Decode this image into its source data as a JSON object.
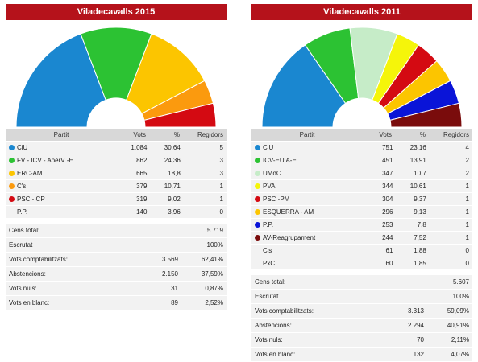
{
  "panels": [
    {
      "title": "Viladecavalls 2015",
      "headers": {
        "party": "Partit",
        "votes": "Vots",
        "pct": "%",
        "seats": "Regidors"
      },
      "parties": [
        {
          "name": "CiU",
          "votes": "1.084",
          "pct": "30,64",
          "seats": "5",
          "color": "#1a87d0"
        },
        {
          "name": "FV - ICV - AperV -E",
          "votes": "862",
          "pct": "24,36",
          "seats": "3",
          "color": "#2cc233"
        },
        {
          "name": "ERC-AM",
          "votes": "665",
          "pct": "18,8",
          "seats": "3",
          "color": "#fcc500"
        },
        {
          "name": "C's",
          "votes": "379",
          "pct": "10,71",
          "seats": "1",
          "color": "#fb9a0e"
        },
        {
          "name": "PSC - CP",
          "votes": "319",
          "pct": "9,02",
          "seats": "1",
          "color": "#d40a12"
        },
        {
          "name": "P.P.",
          "votes": "140",
          "pct": "3,96",
          "seats": "0",
          "color": ""
        }
      ],
      "summary": [
        {
          "label": "Cens total:",
          "value": "",
          "pct": "5.719"
        },
        {
          "label": "Escrutat",
          "value": "",
          "pct": "100%"
        },
        {
          "label": "Vots comptabilitzats:",
          "value": "3.569",
          "pct": "62,41%"
        },
        {
          "label": "Abstencions:",
          "value": "2.150",
          "pct": "37,59%"
        },
        {
          "label": "Vots nuls:",
          "value": "31",
          "pct": "0,87%"
        },
        {
          "label": "Vots en blanc:",
          "value": "89",
          "pct": "2,52%"
        }
      ]
    },
    {
      "title": "Viladecavalls 2011",
      "headers": {
        "party": "Partit",
        "votes": "Vots",
        "pct": "%",
        "seats": "Regidors"
      },
      "parties": [
        {
          "name": "CiU",
          "votes": "751",
          "pct": "23,16",
          "seats": "4",
          "color": "#1a87d0"
        },
        {
          "name": "ICV-EUiA-E",
          "votes": "451",
          "pct": "13,91",
          "seats": "2",
          "color": "#2cc233"
        },
        {
          "name": "UMdC",
          "votes": "347",
          "pct": "10,7",
          "seats": "2",
          "color": "#c6ecc8"
        },
        {
          "name": "PVA",
          "votes": "344",
          "pct": "10,61",
          "seats": "1",
          "color": "#f5f50a"
        },
        {
          "name": "PSC -PM",
          "votes": "304",
          "pct": "9,37",
          "seats": "1",
          "color": "#d40a12"
        },
        {
          "name": "ESQUERRA - AM",
          "votes": "296",
          "pct": "9,13",
          "seats": "1",
          "color": "#fcc500"
        },
        {
          "name": "P.P.",
          "votes": "253",
          "pct": "7,8",
          "seats": "1",
          "color": "#0a14d8"
        },
        {
          "name": "AV-Reagrupament",
          "votes": "244",
          "pct": "7,52",
          "seats": "1",
          "color": "#7a0c0c"
        },
        {
          "name": "C's",
          "votes": "61",
          "pct": "1,88",
          "seats": "0",
          "color": ""
        },
        {
          "name": "PxC",
          "votes": "60",
          "pct": "1,85",
          "seats": "0",
          "color": ""
        }
      ],
      "summary": [
        {
          "label": "Cens total:",
          "value": "",
          "pct": "5.607"
        },
        {
          "label": "Escrutat",
          "value": "",
          "pct": "100%"
        },
        {
          "label": "Vots comptabilitzats:",
          "value": "3.313",
          "pct": "59,09%"
        },
        {
          "label": "Abstencions:",
          "value": "2.294",
          "pct": "40,91%"
        },
        {
          "label": "Vots nuls:",
          "value": "70",
          "pct": "2,11%"
        },
        {
          "label": "Vots en blanc:",
          "value": "132",
          "pct": "4,07%"
        }
      ]
    }
  ],
  "chart_data": [
    {
      "type": "pie",
      "title": "Viladecavalls 2015",
      "categories": [
        "CiU",
        "FV - ICV - AperV -E",
        "ERC-AM",
        "C's",
        "PSC - CP"
      ],
      "values": [
        5,
        3,
        3,
        1,
        1
      ],
      "colors": [
        "#1a87d0",
        "#2cc233",
        "#fcc500",
        "#fb9a0e",
        "#d40a12"
      ]
    },
    {
      "type": "pie",
      "title": "Viladecavalls 2011",
      "categories": [
        "CiU",
        "ICV-EUiA-E",
        "UMdC",
        "PVA",
        "PSC -PM",
        "ESQUERRA - AM",
        "P.P.",
        "AV-Reagrupament"
      ],
      "values": [
        4,
        2,
        2,
        1,
        1,
        1,
        1,
        1
      ],
      "colors": [
        "#1a87d0",
        "#2cc233",
        "#c6ecc8",
        "#f5f50a",
        "#d40a12",
        "#fcc500",
        "#0a14d8",
        "#7a0c0c"
      ]
    }
  ]
}
